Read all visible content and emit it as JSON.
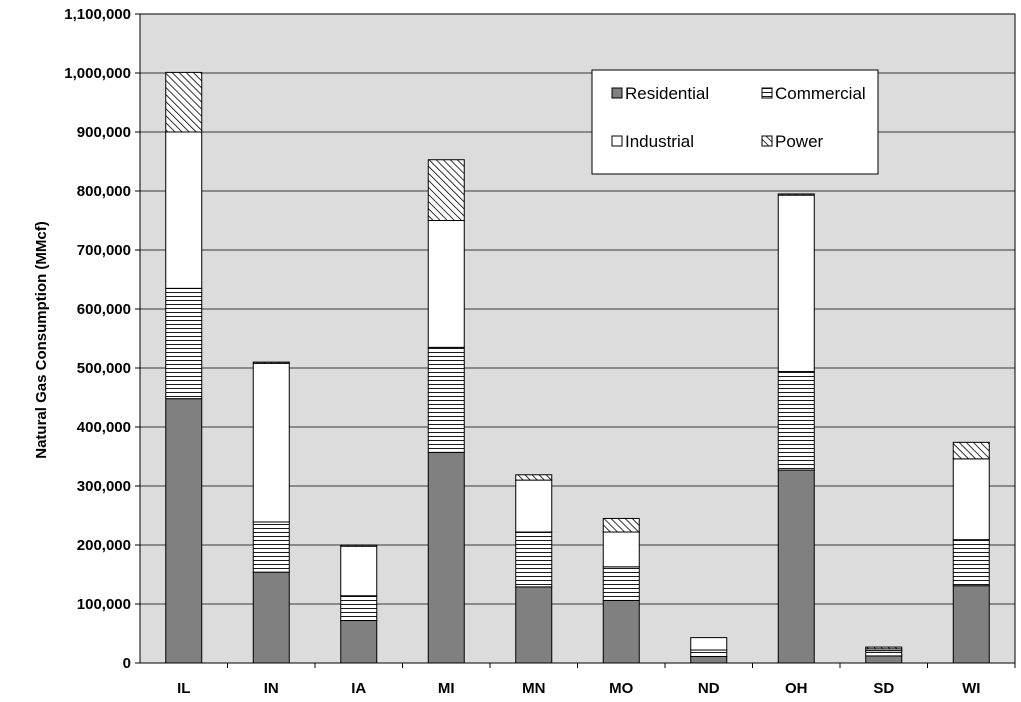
{
  "chart_data": {
    "type": "bar",
    "stacked": true,
    "title": "",
    "xlabel": "",
    "ylabel": "Natural Gas Consumption (MMcf)",
    "ylim": [
      0,
      1100000
    ],
    "ytick_step": 100000,
    "ytick_labels": [
      "0",
      "100,000",
      "200,000",
      "300,000",
      "400,000",
      "500,000",
      "600,000",
      "700,000",
      "800,000",
      "900,000",
      "1,000,000",
      "1,100,000"
    ],
    "grid": true,
    "legend_position": "top-right",
    "categories": [
      "IL",
      "IN",
      "IA",
      "MI",
      "MN",
      "MO",
      "ND",
      "OH",
      "SD",
      "WI"
    ],
    "series": [
      {
        "name": "Residential",
        "color": "#808080",
        "pattern": "solid",
        "values": [
          448000,
          154000,
          72000,
          357000,
          129000,
          106000,
          11000,
          327000,
          12000,
          131000
        ]
      },
      {
        "name": "Commercial",
        "color": "#ffffff",
        "pattern": "horizontal-lines",
        "values": [
          187000,
          85000,
          42000,
          178000,
          93000,
          57000,
          11000,
          167000,
          9000,
          78000
        ]
      },
      {
        "name": "Industrial",
        "color": "#ffffff",
        "pattern": "none",
        "values": [
          265000,
          269000,
          84000,
          215000,
          88000,
          59000,
          21000,
          299000,
          3000,
          137000
        ]
      },
      {
        "name": "Power",
        "color": "#ffffff",
        "pattern": "diagonal-lines",
        "values": [
          101000,
          2000,
          2000,
          103000,
          9000,
          23000,
          0,
          2000,
          3000,
          28000
        ]
      }
    ],
    "colors": {
      "plot_background": "#dcdcdc",
      "residential": "#808080",
      "outline": "#000000"
    }
  }
}
